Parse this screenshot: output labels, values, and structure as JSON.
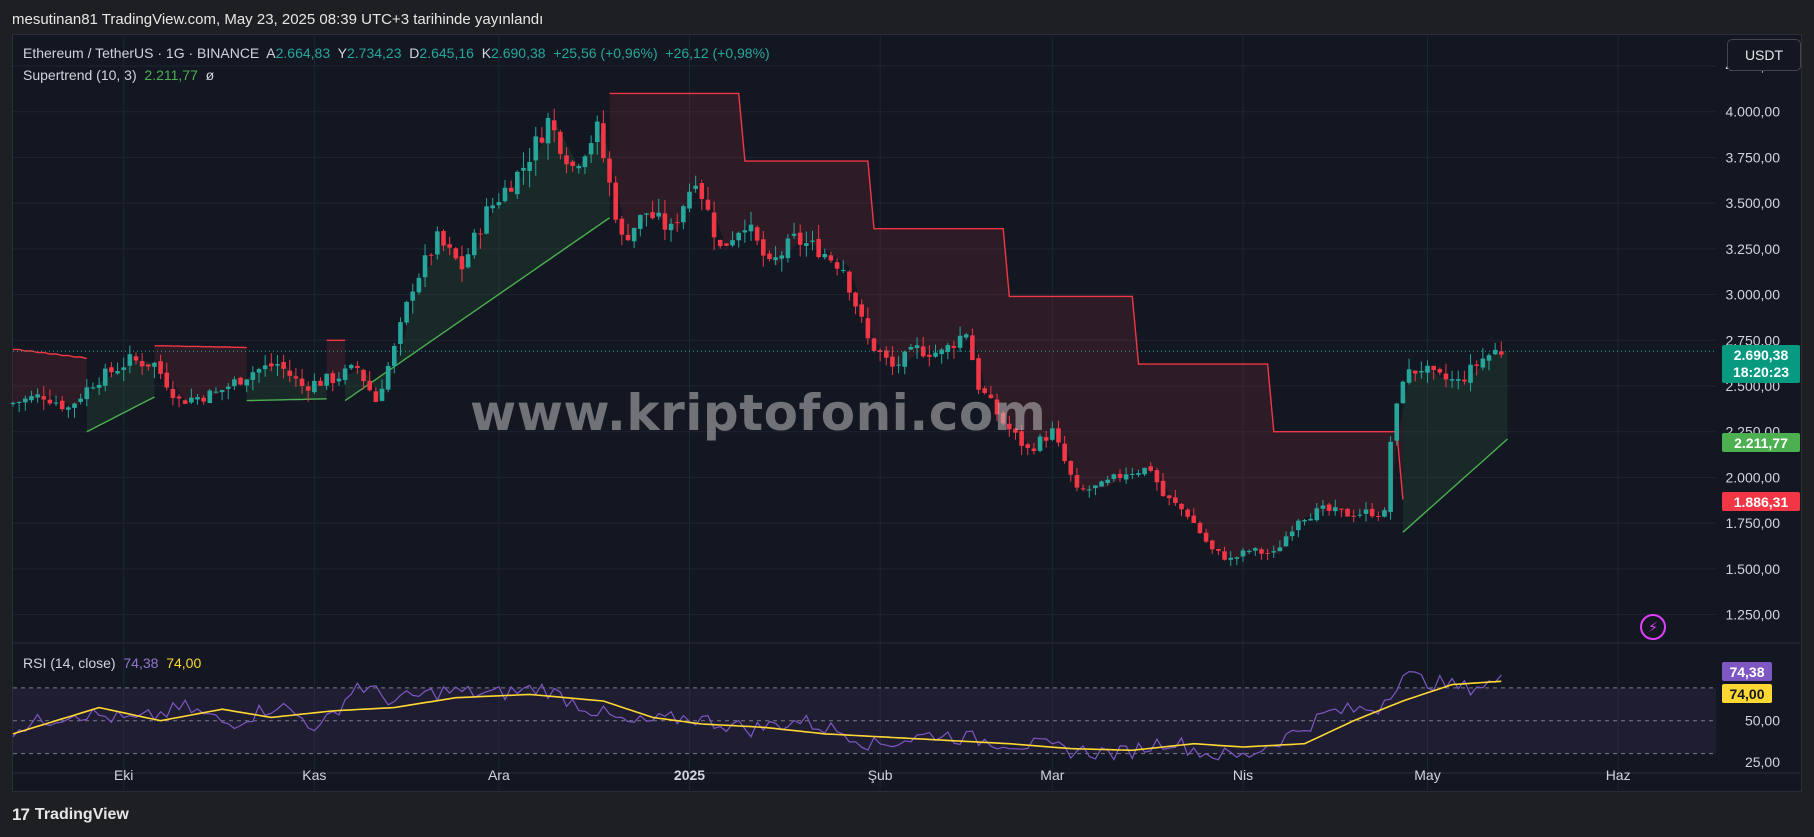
{
  "header": {
    "text": "mesutinan81 TradingView.com, May 23, 2025 08:39 UTC+3 tarihinde yayınlandı"
  },
  "legend": {
    "symbol": "Ethereum / TetherUS · 1G · BINANCE",
    "open_label": "A",
    "open": "2.664,83",
    "high_label": "Y",
    "high": "2.734,23",
    "low_label": "D",
    "low": "2.645,16",
    "close_label": "K",
    "close": "2.690,38",
    "change": "+25,56 (+0,96%)",
    "change2": "+26,12 (+0,98%)",
    "supertrend_label": "Supertrend (10, 3)",
    "supertrend_value": "2.211,77",
    "supertrend_extra": "ø",
    "rsi_label": "RSI (14, close)",
    "rsi_value": "74,38",
    "rsi_ma_value": "74,00"
  },
  "currency_button": "USDT",
  "watermark": "www.kriptofoni.com",
  "footer": {
    "logo": "17",
    "brand": "TradingView"
  },
  "colors": {
    "up": "#26a69a",
    "down": "#f23645",
    "st_up": "#4caf50",
    "st_down": "#f23645",
    "rsi": "#7e57c2",
    "rsi_ma": "#fdd835"
  },
  "badges": {
    "last_price": "2.690,38",
    "countdown": "18:20:23",
    "supertrend": "2.211,77",
    "supertrend_prev": "1.886,31",
    "rsi": "74,38",
    "rsi_ma": "74,00"
  },
  "chart_data": {
    "type": "candlestick",
    "price_axis": {
      "min": 1100,
      "max": 4250,
      "ticks": [
        {
          "value": 1250,
          "label": "1.250,00"
        },
        {
          "value": 1500,
          "label": "1.500,00"
        },
        {
          "value": 1750,
          "label": "1.750,00"
        },
        {
          "value": 2000,
          "label": "2.000,00"
        },
        {
          "value": 2250,
          "label": "2.250,00"
        },
        {
          "value": 2500,
          "label": "2.500,00"
        },
        {
          "value": 2750,
          "label": "2.750,00"
        },
        {
          "value": 3000,
          "label": "3.000,00"
        },
        {
          "value": 3250,
          "label": "3.250,00"
        },
        {
          "value": 3500,
          "label": "3.500,00"
        },
        {
          "value": 3750,
          "label": "3.750,00"
        },
        {
          "value": 4000,
          "label": "4.000,00"
        },
        {
          "value": 4250,
          "label": "4.250,00"
        }
      ]
    },
    "rsi_axis": {
      "min": 20,
      "max": 90,
      "ticks": [
        {
          "value": 25,
          "label": "25,00"
        },
        {
          "value": 50,
          "label": "50,00"
        }
      ],
      "band": [
        30,
        70
      ]
    },
    "time_axis": {
      "labels": [
        {
          "label": "Eki",
          "day": 18,
          "bold": false
        },
        {
          "label": "Kas",
          "day": 49,
          "bold": false
        },
        {
          "label": "Ara",
          "day": 79,
          "bold": false
        },
        {
          "label": "2025",
          "day": 110,
          "bold": true
        },
        {
          "label": "Şub",
          "day": 141,
          "bold": false
        },
        {
          "label": "Mar",
          "day": 169,
          "bold": false
        },
        {
          "label": "Nis",
          "day": 200,
          "bold": false
        },
        {
          "label": "May",
          "day": 230,
          "bold": false
        },
        {
          "label": "Haz",
          "day": 261,
          "bold": false
        }
      ],
      "total_days": 267
    },
    "close_anchors": [
      [
        0,
        2400
      ],
      [
        6,
        2450
      ],
      [
        10,
        2380
      ],
      [
        14,
        2520
      ],
      [
        20,
        2640
      ],
      [
        24,
        2620
      ],
      [
        28,
        2420
      ],
      [
        34,
        2460
      ],
      [
        40,
        2580
      ],
      [
        44,
        2620
      ],
      [
        48,
        2500
      ],
      [
        53,
        2540
      ],
      [
        57,
        2600
      ],
      [
        60,
        2420
      ],
      [
        63,
        2700
      ],
      [
        66,
        3050
      ],
      [
        70,
        3300
      ],
      [
        74,
        3150
      ],
      [
        78,
        3450
      ],
      [
        84,
        3700
      ],
      [
        88,
        3950
      ],
      [
        92,
        3700
      ],
      [
        96,
        3900
      ],
      [
        100,
        3300
      ],
      [
        104,
        3450
      ],
      [
        108,
        3350
      ],
      [
        112,
        3650
      ],
      [
        116,
        3250
      ],
      [
        120,
        3400
      ],
      [
        124,
        3150
      ],
      [
        128,
        3300
      ],
      [
        132,
        3250
      ],
      [
        136,
        3150
      ],
      [
        140,
        2750
      ],
      [
        144,
        2600
      ],
      [
        148,
        2700
      ],
      [
        152,
        2680
      ],
      [
        156,
        2800
      ],
      [
        158,
        2500
      ],
      [
        162,
        2300
      ],
      [
        166,
        2150
      ],
      [
        170,
        2250
      ],
      [
        174,
        1920
      ],
      [
        178,
        1950
      ],
      [
        182,
        2030
      ],
      [
        186,
        2050
      ],
      [
        188,
        1900
      ],
      [
        192,
        1800
      ],
      [
        196,
        1600
      ],
      [
        199,
        1550
      ],
      [
        202,
        1600
      ],
      [
        206,
        1580
      ],
      [
        210,
        1780
      ],
      [
        214,
        1820
      ],
      [
        218,
        1800
      ],
      [
        222,
        1810
      ],
      [
        224,
        1800
      ],
      [
        225,
        2200
      ],
      [
        227,
        2550
      ],
      [
        230,
        2600
      ],
      [
        232,
        2550
      ],
      [
        236,
        2520
      ],
      [
        240,
        2650
      ],
      [
        242,
        2690
      ]
    ],
    "supertrend": [
      {
        "from": 0,
        "to": 12,
        "dir": "down",
        "values": [
          2700,
          2650
        ]
      },
      {
        "from": 12,
        "to": 23,
        "dir": "up",
        "values": [
          2250,
          2440
        ]
      },
      {
        "from": 23,
        "to": 38,
        "dir": "down",
        "values": [
          2720,
          2710
        ]
      },
      {
        "from": 38,
        "to": 51,
        "dir": "up",
        "values": [
          2420,
          2430
        ]
      },
      {
        "from": 51,
        "to": 54,
        "dir": "down",
        "values": [
          2750,
          2750
        ]
      },
      {
        "from": 54,
        "to": 97,
        "dir": "up",
        "values": [
          2420,
          3420
        ]
      },
      {
        "from": 97,
        "to": 226,
        "dir": "down",
        "values": [
          4100,
          1880
        ]
      },
      {
        "from": 226,
        "to": 243,
        "dir": "up",
        "values": [
          1700,
          2210
        ]
      }
    ],
    "rsi": {
      "name": "RSI (14, close)",
      "last": 74.38,
      "ma_last": 74.0,
      "anchors": [
        [
          0,
          45
        ],
        [
          10,
          55
        ],
        [
          20,
          50
        ],
        [
          28,
          58
        ],
        [
          35,
          48
        ],
        [
          43,
          60
        ],
        [
          50,
          45
        ],
        [
          56,
          72
        ],
        [
          62,
          62
        ],
        [
          70,
          68
        ],
        [
          78,
          66
        ],
        [
          86,
          70
        ],
        [
          92,
          60
        ],
        [
          100,
          48
        ],
        [
          110,
          52
        ],
        [
          120,
          45
        ],
        [
          128,
          50
        ],
        [
          136,
          42
        ],
        [
          140,
          35
        ],
        [
          150,
          42
        ],
        [
          158,
          38
        ],
        [
          166,
          35
        ],
        [
          172,
          32
        ],
        [
          180,
          30
        ],
        [
          188,
          38
        ],
        [
          194,
          30
        ],
        [
          200,
          28
        ],
        [
          208,
          42
        ],
        [
          214,
          55
        ],
        [
          222,
          58
        ],
        [
          226,
          78
        ],
        [
          230,
          74
        ],
        [
          236,
          70
        ],
        [
          242,
          74
        ]
      ],
      "ma_anchors": [
        [
          0,
          42
        ],
        [
          14,
          58
        ],
        [
          24,
          50
        ],
        [
          34,
          57
        ],
        [
          42,
          52
        ],
        [
          52,
          56
        ],
        [
          62,
          58
        ],
        [
          72,
          64
        ],
        [
          84,
          66
        ],
        [
          96,
          62
        ],
        [
          104,
          52
        ],
        [
          112,
          48
        ],
        [
          122,
          46
        ],
        [
          132,
          42
        ],
        [
          142,
          40
        ],
        [
          152,
          38
        ],
        [
          162,
          36
        ],
        [
          172,
          33
        ],
        [
          182,
          32
        ],
        [
          192,
          36
        ],
        [
          200,
          34
        ],
        [
          210,
          36
        ],
        [
          218,
          50
        ],
        [
          226,
          62
        ],
        [
          234,
          72
        ],
        [
          242,
          74
        ]
      ]
    }
  }
}
